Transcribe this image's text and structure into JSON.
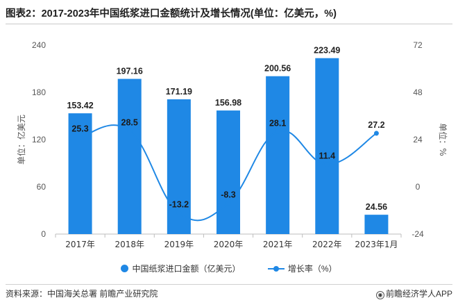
{
  "page": {
    "title": "图表2：2017-2023年中国纸浆进口金额统计及增长情况(单位：亿美元，%)",
    "source": "资料来源：中国海关总署 前瞻产业研究院",
    "brand": "前瞻经济学人APP",
    "brand_icon": "eye-logo-icon"
  },
  "legend": {
    "bar_label": "中国纸浆进口金额（亿美元）",
    "line_label": "增长率（%）"
  },
  "colors": {
    "bar": "#1f88e5",
    "line": "#1f88e5",
    "axis_text": "#555555",
    "grid": "#e0e0e0"
  },
  "chart_data": {
    "type": "bar",
    "categories": [
      "2017年",
      "2018年",
      "2019年",
      "2020年",
      "2021年",
      "2022年",
      "2023年1月"
    ],
    "series": [
      {
        "name": "中国纸浆进口金额（亿美元）",
        "type": "bar",
        "axis": "left",
        "values": [
          153.42,
          197.16,
          171.19,
          156.98,
          200.56,
          223.49,
          24.56
        ],
        "labels": [
          "153.42",
          "197.16",
          "171.19",
          "156.98",
          "200.56",
          "223.49",
          "24.56"
        ]
      },
      {
        "name": "增长率（%）",
        "type": "line",
        "axis": "right",
        "values": [
          25.3,
          28.5,
          -13.2,
          -8.3,
          28.1,
          11.4,
          27.2
        ],
        "labels": [
          "25.3",
          "28.5",
          "-13.2",
          "-8.3",
          "28.1",
          "11.4",
          "27.2"
        ]
      }
    ],
    "ylabel_left": "单位：亿美元",
    "ylabel_right": "单位：%",
    "ylim_left": [
      0,
      240
    ],
    "yticks_left": [
      "0",
      "60",
      "120",
      "180",
      "240"
    ],
    "ylim_right": [
      -24,
      72
    ],
    "yticks_right": [
      "-24",
      "0",
      "24",
      "48",
      "72"
    ],
    "grid": false,
    "legend_position": "bottom"
  }
}
